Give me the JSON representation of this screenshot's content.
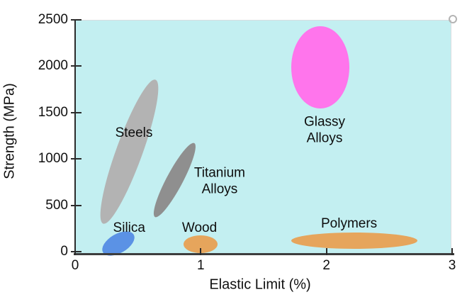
{
  "chart_data": {
    "type": "scatter",
    "subtype": "ellipse-regions",
    "title": "",
    "xlabel": "Elastic Limit (%)",
    "ylabel": "Strength (MPa)",
    "xlim": [
      0,
      3
    ],
    "ylim": [
      0,
      2500
    ],
    "x_ticks": [
      0,
      1,
      2,
      3
    ],
    "y_ticks": [
      0,
      500,
      1000,
      1500,
      2000,
      2500
    ],
    "grid": false,
    "legend": "none",
    "plot_bg": "#c3eff1",
    "axis_color": "#2b2b2b",
    "series": [
      {
        "name": "Steels",
        "label": "Steels",
        "color": "#b3b3b3",
        "center": {
          "x": 0.43,
          "y": 1080
        },
        "rx": 0.105,
        "ry": 825,
        "rotation_deg": 20,
        "x_range": [
          0.2,
          0.65
        ],
        "y_range": [
          300,
          1840
        ],
        "label_pos": {
          "x": 0.468,
          "y": 1280
        }
      },
      {
        "name": "Titanium Alloys",
        "label": "Titanium\nAlloys",
        "color": "#8f8f8f",
        "center": {
          "x": 0.79,
          "y": 770
        },
        "rx": 0.065,
        "ry": 450,
        "rotation_deg": 28,
        "x_range": [
          0.63,
          0.95
        ],
        "y_range": [
          375,
          1165
        ],
        "label_pos": {
          "x": 1.15,
          "y": 760
        }
      },
      {
        "name": "Glassy Alloys",
        "label": "Glassy\nAlloys",
        "color": "#ff75ec",
        "center": {
          "x": 1.95,
          "y": 1985
        },
        "rx": 0.23,
        "ry": 443,
        "rotation_deg": 0,
        "x_range": [
          1.72,
          2.18
        ],
        "y_range": [
          1540,
          2425
        ],
        "label_pos": {
          "x": 1.985,
          "y": 1310
        }
      },
      {
        "name": "Silica",
        "label": "Silica",
        "color": "#5b92e5",
        "center": {
          "x": 0.345,
          "y": 85
        },
        "rx": 0.141,
        "ry": 103,
        "rotation_deg": -30,
        "x_range": [
          0.23,
          0.47
        ],
        "y_range": [
          0,
          175
        ],
        "label_pos": {
          "x": 0.43,
          "y": 252
        }
      },
      {
        "name": "Wood",
        "label": "Wood",
        "color": "#e6a55c",
        "center": {
          "x": 1.0,
          "y": 77
        },
        "rx": 0.135,
        "ry": 96,
        "rotation_deg": 0,
        "x_range": [
          0.87,
          1.14
        ],
        "y_range": [
          0,
          170
        ],
        "label_pos": {
          "x": 0.99,
          "y": 252
        }
      },
      {
        "name": "Polymers",
        "label": "Polymers",
        "color": "#e6a55c",
        "center": {
          "x": 2.22,
          "y": 115
        },
        "rx": 0.502,
        "ry": 88,
        "rotation_deg": 0,
        "x_range": [
          1.72,
          2.72
        ],
        "y_range": [
          30,
          205
        ],
        "label_pos": {
          "x": 2.18,
          "y": 300
        }
      }
    ]
  },
  "decor": {
    "corner_handle_icon": "circle-outline",
    "corner_handle_color": "#b3b3b3"
  }
}
